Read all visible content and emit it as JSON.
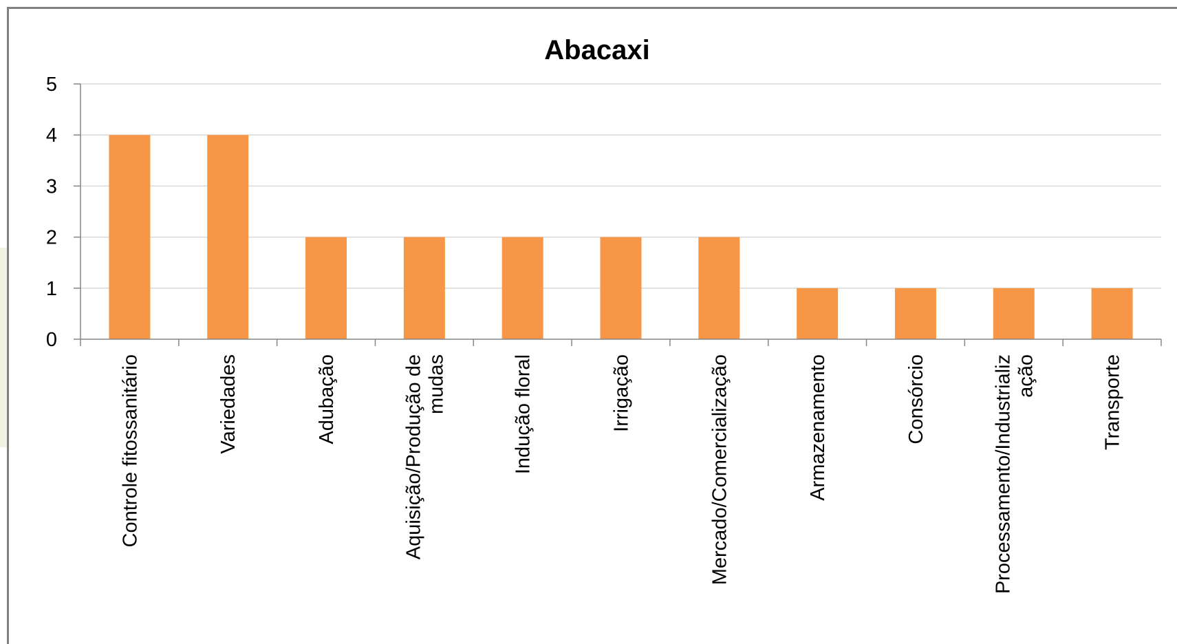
{
  "chart_data": {
    "type": "bar",
    "title": "Abacaxi",
    "xlabel": "",
    "ylabel": "",
    "ylim": [
      0,
      5
    ],
    "yticks": [
      0,
      1,
      2,
      3,
      4,
      5
    ],
    "grid": true,
    "legend": "none",
    "bar_color": "#F79646",
    "categories": [
      [
        "Controle fitossanitário"
      ],
      [
        "Variedades"
      ],
      [
        "Adubação"
      ],
      [
        "Aquisição/Produção de",
        "mudas"
      ],
      [
        "Indução floral"
      ],
      [
        "Irrigação"
      ],
      [
        "Mercado/Comercialização"
      ],
      [
        "Armazenamento"
      ],
      [
        "Consórcio"
      ],
      [
        "Processamento/Industrializ",
        "ação"
      ],
      [
        "Transporte"
      ]
    ],
    "values": [
      4,
      4,
      2,
      2,
      2,
      2,
      2,
      1,
      1,
      1,
      1
    ]
  }
}
